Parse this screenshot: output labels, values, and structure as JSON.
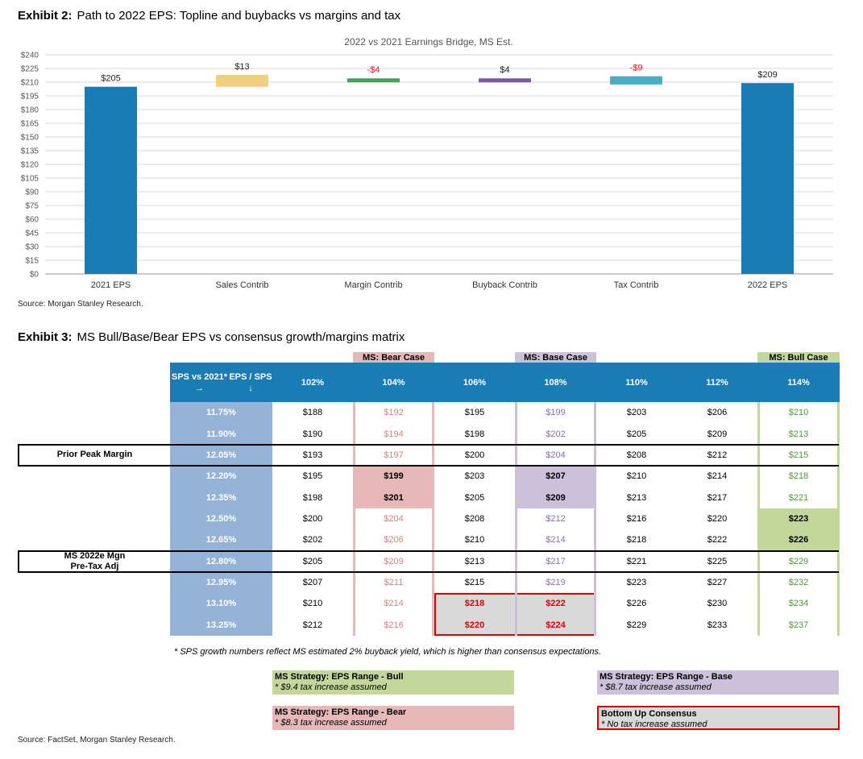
{
  "exhibit2": {
    "label": "Exhibit 2:",
    "title": "Path to 2022 EPS: Topline and buybacks vs margins and tax",
    "source": "Source: Morgan Stanley Research."
  },
  "chart_data": {
    "type": "bar",
    "subtype": "waterfall",
    "title": "2022 vs 2021 Earnings Bridge, MS Est.",
    "xlabel": "",
    "ylabel": "",
    "ylim": [
      0,
      240
    ],
    "yticks": [
      "$0",
      "$15",
      "$30",
      "$45",
      "$60",
      "$75",
      "$90",
      "$105",
      "$120",
      "$135",
      "$150",
      "$165",
      "$180",
      "$195",
      "$210",
      "$225",
      "$240"
    ],
    "grid": true,
    "categories": [
      "2021 EPS",
      "Sales Contrib",
      "Margin Contrib",
      "Buyback Contrib",
      "Tax Contrib",
      "2022 EPS"
    ],
    "values": [
      205,
      13,
      -4,
      4,
      -9,
      209
    ],
    "data_labels": [
      "$205",
      "$13",
      "-$4",
      "$4",
      "-$9",
      "$209"
    ],
    "bar_colors": [
      "#1a7cb5",
      "#f0d080",
      "#3fa35b",
      "#7b59a4",
      "#4bacc6",
      "#1a7cb5"
    ],
    "label_colors": [
      "#222222",
      "#222222",
      "#e02020",
      "#222222",
      "#e02020",
      "#222222"
    ]
  },
  "exhibit3": {
    "label": "Exhibit 3:",
    "title": "MS Bull/Base/Bear EPS vs consensus growth/margins matrix",
    "source": "Source: FactSet, Morgan Stanley Research.",
    "case_labels": {
      "bear": "MS: Bear Case",
      "base": "MS: Base Case",
      "bull": "MS: Bull Case"
    },
    "header_corner": [
      "SPS vs 2021* →",
      "EPS / SPS ↓"
    ],
    "columns": [
      "102%",
      "104%",
      "106%",
      "108%",
      "110%",
      "112%",
      "114%"
    ],
    "rows": [
      {
        "margin": "11.75%",
        "values": [
          "$188",
          "$192",
          "$195",
          "$199",
          "$203",
          "$206",
          "$210"
        ]
      },
      {
        "margin": "11.90%",
        "values": [
          "$190",
          "$194",
          "$198",
          "$202",
          "$205",
          "$209",
          "$213"
        ]
      },
      {
        "margin": "12.05%",
        "values": [
          "$193",
          "$197",
          "$200",
          "$204",
          "$208",
          "$212",
          "$215"
        ]
      },
      {
        "margin": "12.20%",
        "values": [
          "$195",
          "$199",
          "$203",
          "$207",
          "$210",
          "$214",
          "$218"
        ]
      },
      {
        "margin": "12.35%",
        "values": [
          "$198",
          "$201",
          "$205",
          "$209",
          "$213",
          "$217",
          "$221"
        ]
      },
      {
        "margin": "12.50%",
        "values": [
          "$200",
          "$204",
          "$208",
          "$212",
          "$216",
          "$220",
          "$223"
        ]
      },
      {
        "margin": "12.65%",
        "values": [
          "$202",
          "$206",
          "$210",
          "$214",
          "$218",
          "$222",
          "$226"
        ]
      },
      {
        "margin": "12.80%",
        "values": [
          "$205",
          "$209",
          "$213",
          "$217",
          "$221",
          "$225",
          "$229"
        ]
      },
      {
        "margin": "12.95%",
        "values": [
          "$207",
          "$211",
          "$215",
          "$219",
          "$223",
          "$227",
          "$232"
        ]
      },
      {
        "margin": "13.10%",
        "values": [
          "$210",
          "$214",
          "$218",
          "$222",
          "$226",
          "$230",
          "$234"
        ]
      },
      {
        "margin": "13.25%",
        "values": [
          "$212",
          "$216",
          "$220",
          "$224",
          "$229",
          "$233",
          "$237"
        ]
      }
    ],
    "row_labels": {
      "prior_peak": "Prior Peak Margin",
      "ms_2022e_line1": "MS 2022e Mgn",
      "ms_2022e_line2": "Pre-Tax Adj"
    },
    "note": "* SPS growth numbers reflect MS estimated 2% buyback yield, which is higher than consensus expectations.",
    "legend": {
      "bull_title": "MS Strategy: EPS Range - Bull",
      "bull_sub": "* $9.4 tax increase assumed",
      "base_title": "MS Strategy: EPS Range  - Base",
      "base_sub": "* $8.7 tax increase assumed",
      "bear_title": "MS Strategy: EPS Range - Bear",
      "bear_sub": "* $8.3 tax increase assumed",
      "consensus_title": "Bottom Up Consensus",
      "consensus_sub": "* No tax increase assumed"
    },
    "colors": {
      "header": "#1a7cb5",
      "margin_col": "#95b3d7",
      "bear": "#e6b8b7",
      "base": "#ccc0da",
      "bull": "#c4d79b",
      "consensus_fill": "#d9d9d9",
      "consensus_border": "#e00000",
      "bear_text": "#e0807a",
      "base_text": "#8a6fb3",
      "bull_text": "#4f9a3a",
      "consensus_text": "#e00000"
    }
  }
}
